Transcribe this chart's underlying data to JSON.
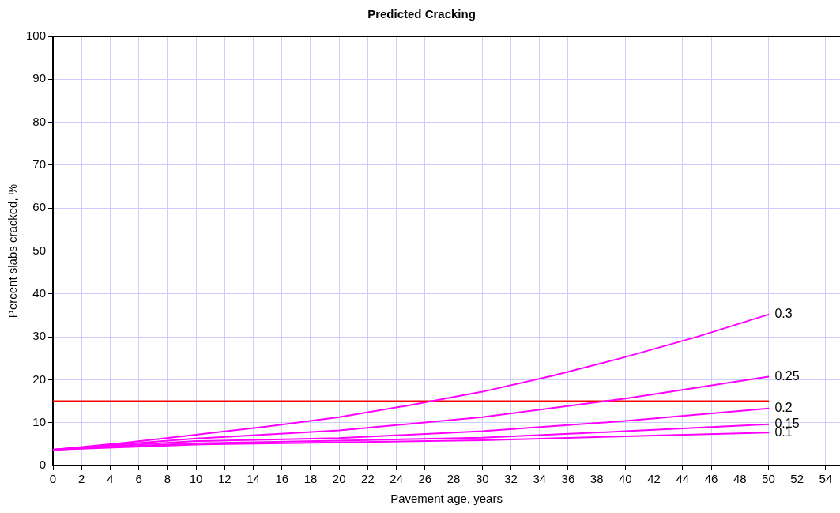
{
  "chart_data": {
    "type": "line",
    "title": "Predicted Cracking",
    "xlabel": "Pavement age, years",
    "ylabel": "Percent slabs cracked, %",
    "xlim": [
      0,
      55
    ],
    "xticks": [
      0,
      2,
      4,
      6,
      8,
      10,
      12,
      14,
      16,
      18,
      20,
      22,
      24,
      26,
      28,
      30,
      32,
      34,
      36,
      38,
      40,
      42,
      44,
      46,
      48,
      50,
      52,
      54
    ],
    "ylim": [
      0,
      100
    ],
    "yticks": [
      0,
      10,
      20,
      30,
      40,
      50,
      60,
      70,
      80,
      90,
      100
    ],
    "grid": true,
    "legend": false,
    "marker": "none",
    "line_style": "solid",
    "series": [
      {
        "name": "0.3",
        "color": "#ff00ff",
        "x": [
          0,
          5,
          10,
          15,
          20,
          25,
          30,
          35,
          40,
          45,
          50
        ],
        "values": [
          3.7,
          5.3,
          7.2,
          9.1,
          11.3,
          14.1,
          17.2,
          21.0,
          25.3,
          30.0,
          35.2
        ]
      },
      {
        "name": "0.25",
        "color": "#ff00ff",
        "x": [
          0,
          10,
          20,
          30,
          40,
          50
        ],
        "values": [
          3.7,
          6.3,
          8.2,
          11.3,
          15.6,
          20.7
        ]
      },
      {
        "name": "0.2",
        "color": "#ff00ff",
        "x": [
          0,
          10,
          20,
          30,
          40,
          50
        ],
        "values": [
          3.7,
          5.7,
          6.4,
          8.0,
          10.4,
          13.3
        ]
      },
      {
        "name": "0.15",
        "color": "#ff00ff",
        "x": [
          0,
          10,
          20,
          30,
          40,
          50
        ],
        "values": [
          3.7,
          5.2,
          5.8,
          6.5,
          8.0,
          9.6
        ]
      },
      {
        "name": "0.1",
        "color": "#ff00ff",
        "x": [
          0,
          10,
          20,
          30,
          40,
          50
        ],
        "values": [
          3.7,
          4.9,
          5.4,
          5.9,
          6.8,
          7.7
        ]
      },
      {
        "color": "#ff0000",
        "x": [
          0,
          50
        ],
        "values": [
          15,
          15
        ]
      }
    ]
  }
}
